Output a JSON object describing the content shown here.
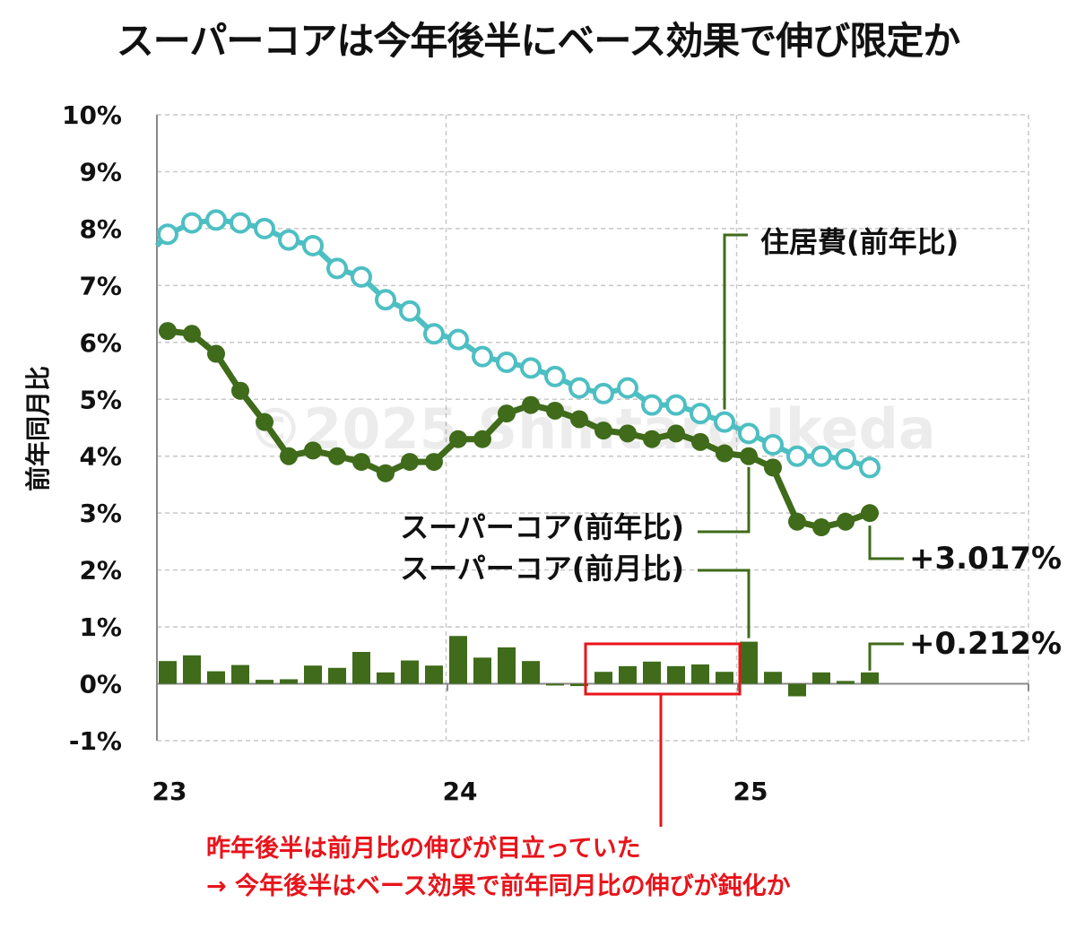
{
  "chart_data": {
    "type": "bar+line",
    "title": "スーパーコアは今年後半にベース効果で伸び限定か",
    "ylabel": "前年同月比",
    "ylim": [
      -1,
      10
    ],
    "y_ticks": [
      "10%",
      "9%",
      "8%",
      "7%",
      "6%",
      "5%",
      "4%",
      "3%",
      "2%",
      "1%",
      "0%",
      "-1%"
    ],
    "x_ticks": [
      "23",
      "24",
      "25"
    ],
    "grid": true,
    "watermark": "©2025 Shintaro Ikeda",
    "series": [
      {
        "name": "住居費(前年比)",
        "type": "line",
        "color": "#4dbfc3",
        "marker": "hollow-circle",
        "values": [
          7.9,
          8.1,
          8.15,
          8.1,
          8.0,
          7.8,
          7.7,
          7.3,
          7.15,
          6.75,
          6.55,
          6.15,
          6.05,
          5.75,
          5.65,
          5.55,
          5.4,
          5.2,
          5.1,
          5.2,
          4.9,
          4.9,
          4.75,
          4.6,
          4.4,
          4.2,
          4.0,
          4.0,
          3.95,
          3.8
        ]
      },
      {
        "name": "スーパーコア(前年比)",
        "type": "line",
        "color": "#3f6b1a",
        "marker": "filled-circle",
        "values": [
          6.2,
          6.15,
          5.8,
          5.15,
          4.6,
          4.0,
          4.1,
          4.0,
          3.9,
          3.7,
          3.9,
          3.9,
          4.3,
          4.3,
          4.75,
          4.9,
          4.8,
          4.65,
          4.45,
          4.4,
          4.3,
          4.4,
          4.25,
          4.05,
          4.0,
          3.8,
          2.85,
          2.75,
          2.85,
          3.0
        ]
      },
      {
        "name": "スーパーコア(前月比)",
        "type": "bar",
        "color": "#3f6b1a",
        "values": [
          0.4,
          0.5,
          0.22,
          0.33,
          0.07,
          0.08,
          0.32,
          0.28,
          0.56,
          0.2,
          0.41,
          0.32,
          0.84,
          0.46,
          0.64,
          0.4,
          -0.03,
          -0.04,
          0.21,
          0.31,
          0.39,
          0.31,
          0.34,
          0.21,
          0.74,
          0.21,
          -0.22,
          0.2,
          0.05,
          0.2
        ]
      }
    ],
    "last_values": [
      "+3.017%",
      "+0.212%"
    ],
    "annotation_lines": [
      "昨年後半は前月比の伸びが目立っていた",
      "→ 今年後半はベース効果で前年同月比の伸びが鈍化か"
    ],
    "highlight_range_months": [
      18,
      23
    ],
    "colors": {
      "teal": "#4dbfc3",
      "green": "#3f6b1a",
      "red": "#e8141b",
      "grid": "#c8c8c8"
    }
  }
}
